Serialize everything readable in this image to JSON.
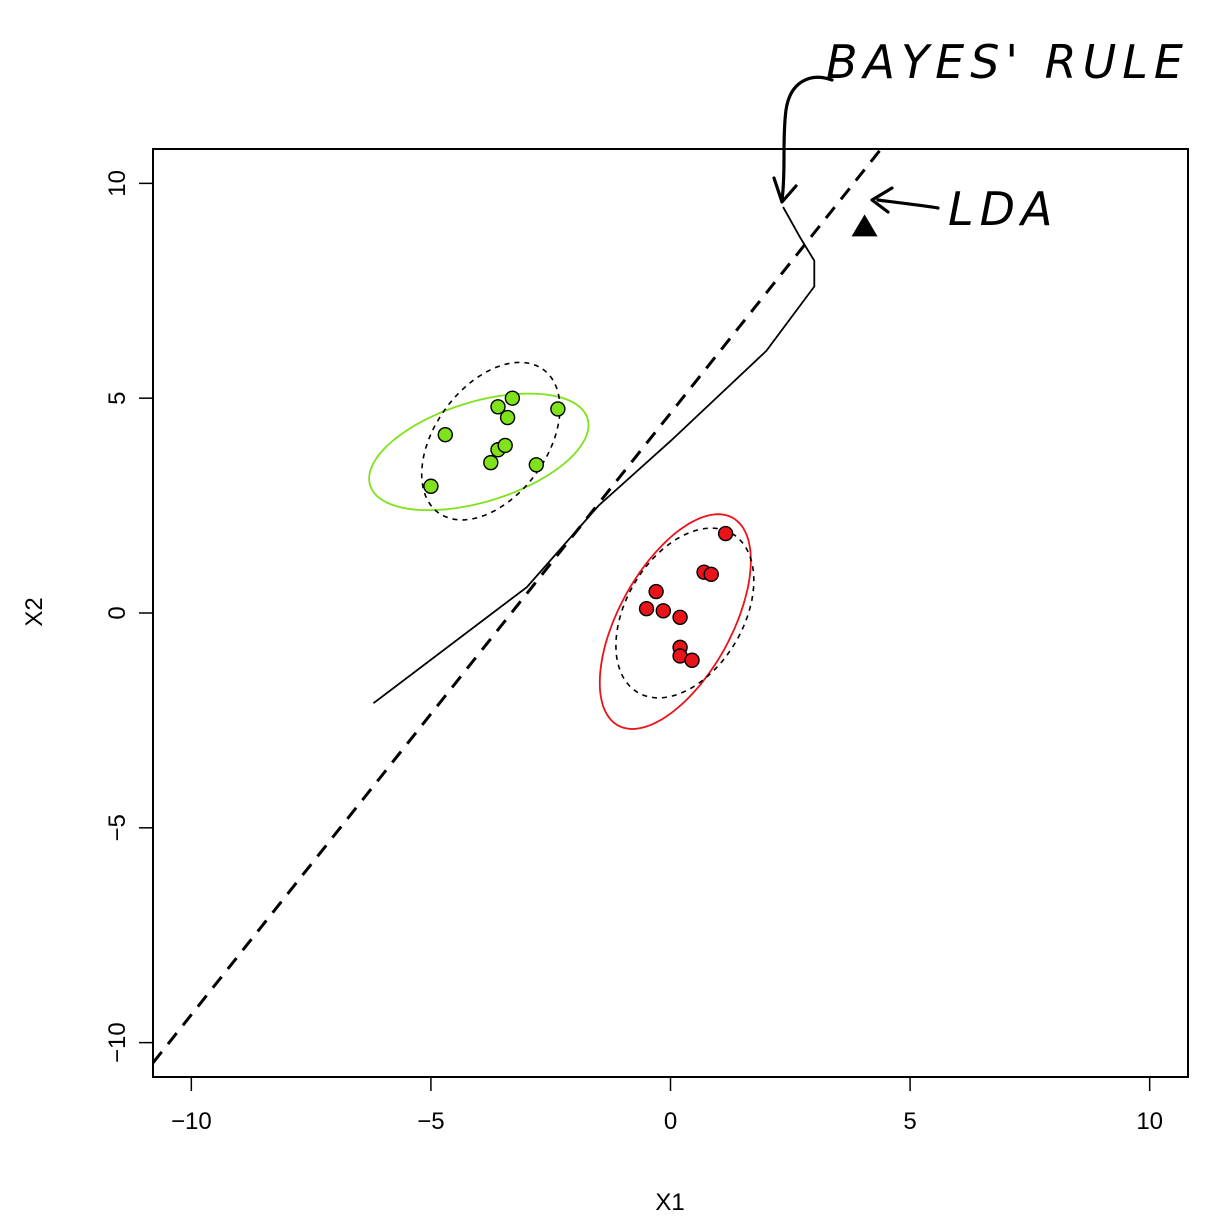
{
  "chart_data": {
    "type": "scatter",
    "xlabel": "X1",
    "ylabel": "X2",
    "xlim": [
      -10.8,
      10.8
    ],
    "ylim": [
      -10.8,
      10.8
    ],
    "x_ticks": [
      -10,
      -5,
      0,
      5,
      10
    ],
    "y_ticks": [
      -10,
      -5,
      0,
      5,
      10
    ],
    "x_tick_labels": [
      "−10",
      "−5",
      "0",
      "5",
      "10"
    ],
    "y_tick_labels": [
      "−10",
      "−5",
      "0",
      "5",
      "10"
    ],
    "grid": false,
    "colors": {
      "green": "#7fe21a",
      "red": "#e8141a",
      "black": "#000000"
    },
    "series": [
      {
        "color": "#7fe21a",
        "points": [
          [
            -5.0,
            2.95
          ],
          [
            -4.7,
            4.15
          ],
          [
            -3.75,
            3.5
          ],
          [
            -3.6,
            3.8
          ],
          [
            -3.45,
            3.9
          ],
          [
            -3.6,
            4.8
          ],
          [
            -3.4,
            4.55
          ],
          [
            -3.3,
            5.0
          ],
          [
            -2.8,
            3.45
          ],
          [
            -2.35,
            4.75
          ]
        ]
      },
      {
        "color": "#e8141a",
        "points": [
          [
            1.15,
            1.85
          ],
          [
            0.7,
            0.95
          ],
          [
            0.85,
            0.9
          ],
          [
            -0.3,
            0.5
          ],
          [
            -0.5,
            0.1
          ],
          [
            -0.15,
            0.05
          ],
          [
            0.2,
            -0.1
          ],
          [
            0.2,
            -0.8
          ],
          [
            0.2,
            -1.0
          ],
          [
            0.45,
            -1.1
          ]
        ]
      }
    ],
    "test_point": [
      4.05,
      9.0
    ],
    "ellipses": [
      {
        "cx": -4.0,
        "cy": 3.75,
        "rx": 2.4,
        "ry": 1.15,
        "angle": 20,
        "style": "solid",
        "color": "#7fe21a"
      },
      {
        "cx": -3.75,
        "cy": 4.0,
        "rx": 2.0,
        "ry": 1.2,
        "angle": 60,
        "style": "dashed",
        "color": "#000000"
      },
      {
        "cx": 0.1,
        "cy": -0.2,
        "rx": 2.7,
        "ry": 1.2,
        "angle": 65,
        "style": "solid",
        "color": "#e8141a"
      },
      {
        "cx": 0.3,
        "cy": 0.0,
        "rx": 2.1,
        "ry": 1.25,
        "angle": 65,
        "style": "dashed",
        "color": "#000000"
      }
    ],
    "lda_line": {
      "slope": 1.4,
      "intercept": 4.65,
      "style": "dashed"
    },
    "bayes_curve": [
      [
        -6.2,
        -2.1
      ],
      [
        -3.0,
        0.6
      ],
      [
        -1.5,
        2.5
      ],
      [
        0.0,
        4.0
      ],
      [
        2.0,
        6.1
      ],
      [
        3.0,
        7.6
      ],
      [
        3.0,
        8.2
      ],
      [
        2.7,
        8.75
      ],
      [
        2.35,
        9.45
      ]
    ],
    "annotations": [
      {
        "text": "BAYES' RULE"
      },
      {
        "text": "LDA"
      }
    ]
  }
}
